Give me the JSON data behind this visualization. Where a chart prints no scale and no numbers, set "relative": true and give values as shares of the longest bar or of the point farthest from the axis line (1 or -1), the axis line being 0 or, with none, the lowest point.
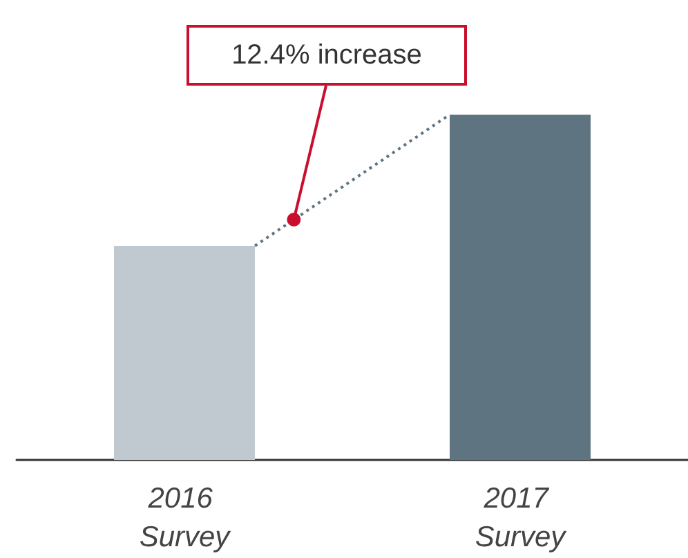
{
  "chart_data": {
    "type": "bar",
    "relative": true,
    "categories": [
      "2016 Survey",
      "2017 Survey"
    ],
    "colors": [
      "#c0c9cf",
      "#5f7481"
    ],
    "values": [
      0.62,
      1
    ],
    "annotations": [
      "12.4% increase"
    ]
  }
}
